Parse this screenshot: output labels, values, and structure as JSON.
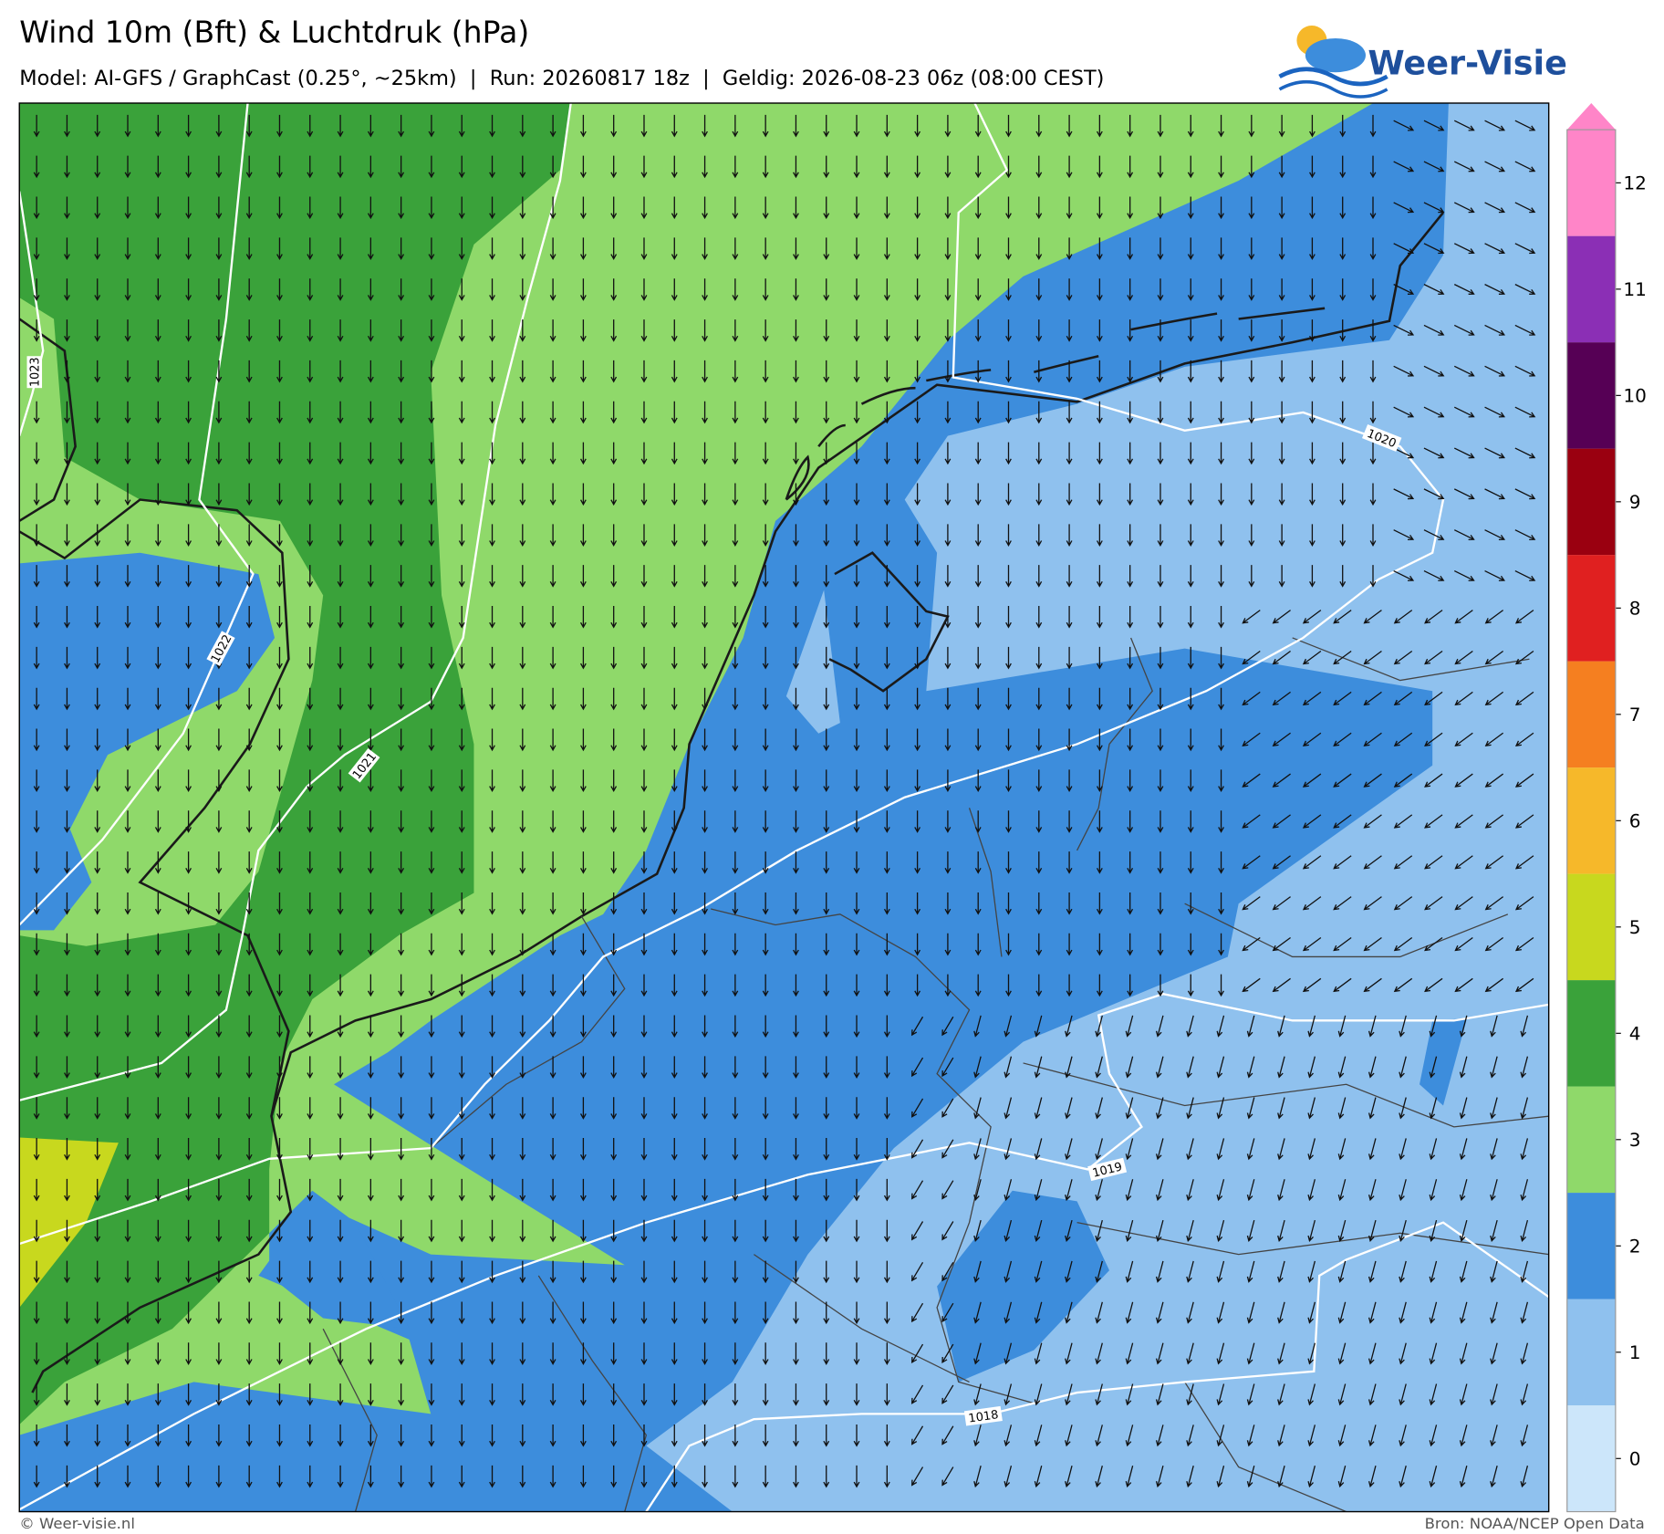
{
  "header": {
    "title": "Wind 10m (Bft) & Luchtdruk (hPa)",
    "subtitle": "Model: AI-GFS / GraphCast (0.25°, ~25km)  |  Run: 20260817 18z  |  Geldig: 2026-08-23 06z (08:00 CEST)",
    "logo": "Weer-Visie"
  },
  "colorbar": {
    "ticks": [
      0,
      1,
      2,
      3,
      4,
      5,
      6,
      7,
      8,
      9,
      10,
      11,
      12
    ],
    "colors": [
      "#cce6fa",
      "#8fc1ee",
      "#3d8ddc",
      "#8fd96a",
      "#3aa23a",
      "#c8d81e",
      "#f6b82a",
      "#f57f20",
      "#e02020",
      "#9a0010",
      "#560055",
      "#8b2fb5",
      "#ff85c8"
    ]
  },
  "isobars": [
    {
      "label": "1023"
    },
    {
      "label": "1022"
    },
    {
      "label": "1021"
    },
    {
      "label": "1020"
    },
    {
      "label": "1019"
    },
    {
      "label": "1018"
    }
  ],
  "footer": {
    "left": "© Weer-visie.nl",
    "right": "Bron: NOAA/NCEP Open Data"
  }
}
